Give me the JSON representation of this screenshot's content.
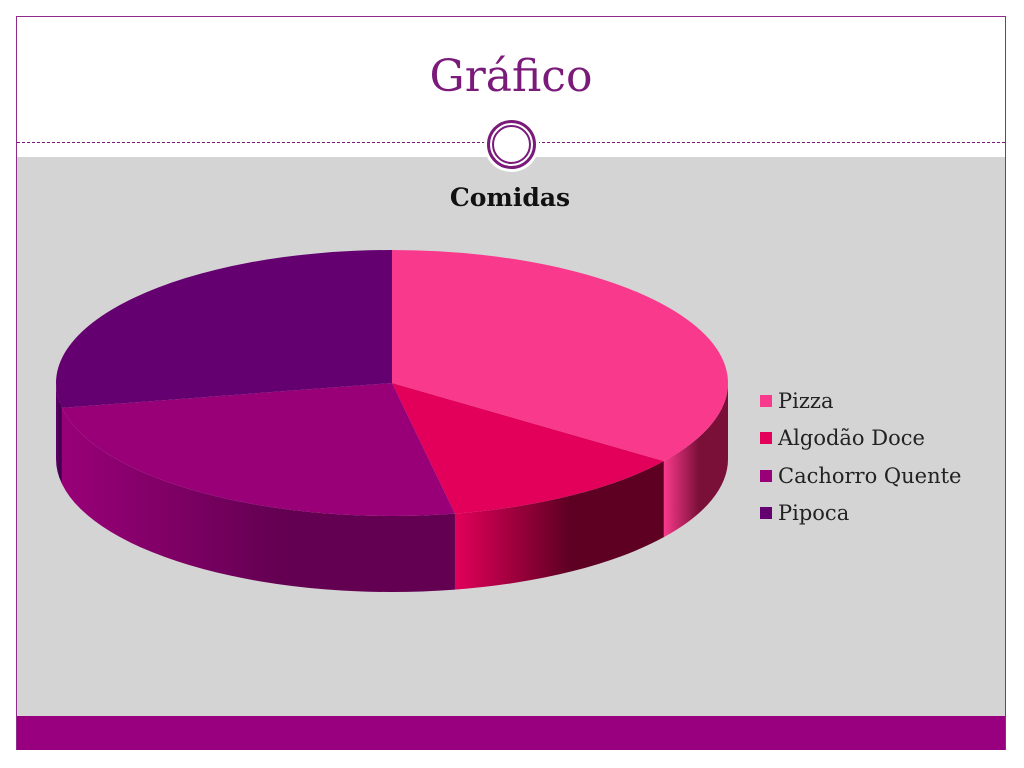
{
  "slide": {
    "title": "Gráfico"
  },
  "chart_data": {
    "type": "pie",
    "title": "Comidas",
    "categories": [
      "Pizza",
      "Algodão Doce",
      "Cachorro Quente",
      "Pipoca"
    ],
    "values": [
      35,
      12,
      25,
      28
    ],
    "colors": [
      "#f93a8c",
      "#e2005a",
      "#990078",
      "#640070"
    ],
    "side_colors": [
      "#7a0f38",
      "#5e0022",
      "#640052",
      "#440050"
    ],
    "legend_position": "right",
    "style": "3d"
  },
  "colors": {
    "accent": "#990080",
    "title": "#7a1b7a",
    "content_bg": "#d4d4d4"
  }
}
